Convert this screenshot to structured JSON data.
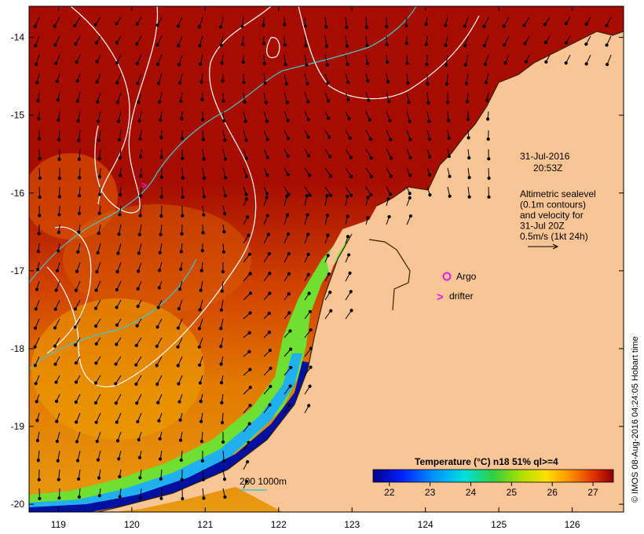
{
  "map": {
    "title": "31-Jul-2016",
    "time": "20:53Z",
    "legend_lines": [
      "Altimetric sealevel",
      "(0.1m contours)",
      "and velocity for",
      "31-Jul 20Z",
      "0.5m/s (1kt 24h)"
    ],
    "argo_label": "Argo",
    "drifter_label": "drifter",
    "drifter_symbol": ">",
    "depth_label": "200  1000m",
    "credit": "© IMOS 08-Aug-2016 04:24:05 Hobart time",
    "colorbar": {
      "title": "Temperature (°C) n18 51% ql>=4",
      "ticks": [
        "22",
        "23",
        "24",
        "25",
        "26",
        "27"
      ],
      "range": [
        21.6,
        27.5
      ]
    },
    "x_ticks": [
      "119",
      "120",
      "121",
      "122",
      "123",
      "124",
      "125",
      "126"
    ],
    "y_ticks": [
      "-14",
      "-15",
      "-16",
      "-17",
      "-18",
      "-19",
      "-20"
    ],
    "lon_range": [
      118.6,
      126.7
    ],
    "lat_range": [
      -13.6,
      -20.1
    ],
    "colors": {
      "land": "#f9c595",
      "warm": "#a60d00",
      "argo": "#e020e0",
      "contour_200": "#40c8c8",
      "sealevel": "#ffffff"
    }
  }
}
